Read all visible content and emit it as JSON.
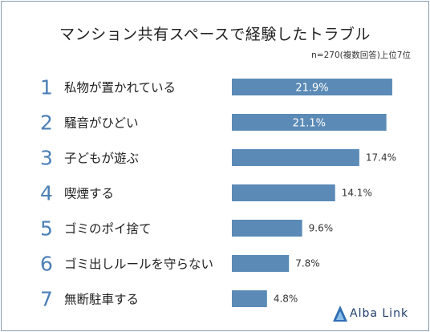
{
  "chart_data": {
    "type": "bar",
    "orientation": "horizontal",
    "title": "マンション共有スペースで経験したトラブル",
    "subtitle": "n=270(複数回答)上位7位",
    "ranks": [
      "1",
      "2",
      "3",
      "4",
      "5",
      "6",
      "7"
    ],
    "categories": [
      "私物が置かれている",
      "騒音がひどい",
      "子どもが遊ぶ",
      "喫煙する",
      "ゴミのポイ捨て",
      "ゴミ出しルールを守らない",
      "無断駐車する"
    ],
    "values": [
      21.9,
      21.1,
      17.4,
      14.1,
      9.6,
      7.8,
      4.8
    ],
    "value_labels": [
      "21.9%",
      "21.1%",
      "17.4%",
      "14.1%",
      "9.6%",
      "7.8%",
      "4.8%"
    ],
    "unit": "%",
    "bar_color": "#5b8ab6",
    "rank_color": "#4b7fb6"
  },
  "logo": {
    "text": "Alba Link",
    "color": "#1f3b68"
  }
}
